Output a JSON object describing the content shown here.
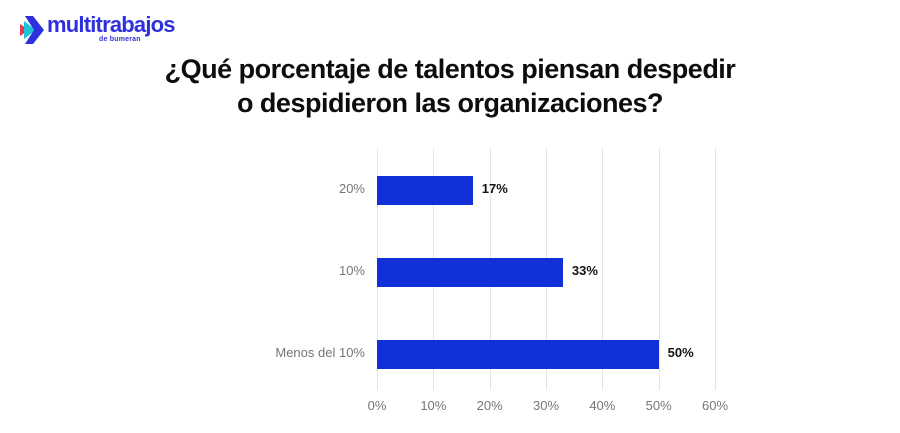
{
  "logo": {
    "brand": "multitrabajos",
    "tagline": "de bumeran",
    "icon": "bumeran-chevron-icon"
  },
  "title": {
    "line1": "¿Qué porcentaje de talentos piensan despedir",
    "line2": "o despidieron las organizaciones?"
  },
  "colors": {
    "bar_blue": "#1230d8",
    "gridline": "#e4e4e4",
    "axis_text": "#767676",
    "value_text": "#141414",
    "title_text": "#0d0d0d",
    "logo_blue": "#2e31db",
    "logo_red": "#e23a4e",
    "logo_teal": "#1ec3d8"
  },
  "chart_data": {
    "type": "bar",
    "orientation": "horizontal",
    "title": "¿Qué porcentaje de talentos piensan despedir o despidieron las organizaciones?",
    "categories": [
      "20%",
      "10%",
      "Menos del 10%"
    ],
    "values": [
      17,
      33,
      50
    ],
    "value_labels": [
      "17%",
      "33%",
      "50%"
    ],
    "x_ticks": [
      0,
      10,
      20,
      30,
      40,
      50,
      60
    ],
    "x_tick_labels": [
      "0%",
      "10%",
      "20%",
      "30%",
      "40%",
      "50%",
      "60%"
    ],
    "xlim": [
      0,
      60
    ],
    "grid": true,
    "legend": false,
    "bar_color": "#1230d8"
  }
}
